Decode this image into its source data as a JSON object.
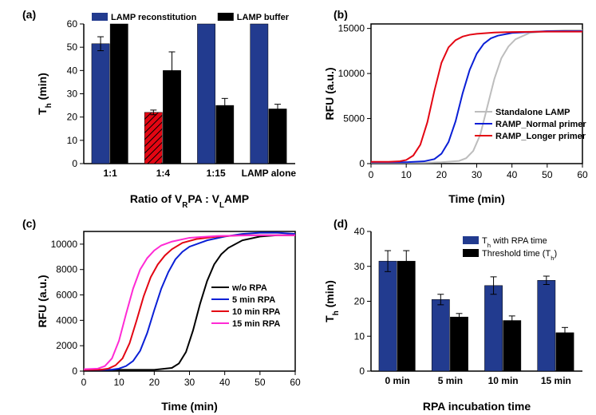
{
  "panel_a": {
    "label": "(a)",
    "type": "bar",
    "categories": [
      "1:1",
      "1:4",
      "1:15",
      "LAMP alone"
    ],
    "series": [
      {
        "name": "LAMP reconstitution",
        "color": "#223b8f",
        "values": [
          51.5,
          22,
          62,
          62
        ],
        "errors": [
          3,
          1,
          0,
          0
        ],
        "hatched": [
          false,
          true,
          false,
          false
        ]
      },
      {
        "name": "LAMP buffer",
        "color": "#000000",
        "values": [
          62,
          40,
          25,
          23.5
        ],
        "errors": [
          0,
          8,
          3,
          2
        ],
        "hatched": [
          false,
          false,
          false,
          false
        ]
      }
    ],
    "xlabel": "Ratio of V_RPA : V_LAMP",
    "ylabel": "T_h (min)",
    "ylim": [
      0,
      60
    ],
    "ytick_step": 10,
    "bar_width": 0.35,
    "axis_color": "#000000",
    "tick_fontsize": 12,
    "label_fontsize": 14,
    "legend_fontsize": 11
  },
  "panel_b": {
    "label": "(b)",
    "type": "line",
    "xlabel": "Time (min)",
    "ylabel": "RFU (a.u.)",
    "xlim": [
      0,
      60
    ],
    "xtick_step": 10,
    "ylim": [
      0,
      15500
    ],
    "ytick_step": 5000,
    "axis_color": "#000000",
    "line_width": 2.0,
    "tick_fontsize": 12,
    "label_fontsize": 14,
    "legend_fontsize": 11,
    "series": [
      {
        "name": "Standalone LAMP",
        "color": "#bdbdbd",
        "x": [
          0,
          5,
          10,
          15,
          20,
          25,
          27,
          29,
          31,
          33,
          35,
          37,
          39,
          41,
          45,
          50,
          55,
          60
        ],
        "y": [
          100,
          100,
          100,
          100,
          150,
          300,
          600,
          1400,
          3200,
          6300,
          9400,
          11700,
          13000,
          13800,
          14500,
          14700,
          14800,
          14800
        ]
      },
      {
        "name": "RAMP_Normal primer",
        "color": "#0a1fd6",
        "x": [
          0,
          5,
          10,
          15,
          18,
          20,
          22,
          24,
          26,
          28,
          30,
          32,
          34,
          36,
          40,
          45,
          50,
          55,
          60
        ],
        "y": [
          150,
          150,
          150,
          250,
          500,
          1100,
          2400,
          4700,
          7800,
          10400,
          12200,
          13300,
          13900,
          14200,
          14500,
          14600,
          14700,
          14700,
          14700
        ]
      },
      {
        "name": "RAMP_Longer primer",
        "color": "#e30613",
        "x": [
          0,
          5,
          8,
          10,
          12,
          14,
          16,
          18,
          20,
          22,
          24,
          26,
          28,
          30,
          35,
          40,
          50,
          60
        ],
        "y": [
          200,
          200,
          250,
          400,
          900,
          2100,
          4600,
          8100,
          11200,
          12900,
          13700,
          14100,
          14300,
          14400,
          14550,
          14600,
          14650,
          14650
        ]
      }
    ]
  },
  "panel_c": {
    "label": "(c)",
    "type": "line",
    "xlabel": "Time (min)",
    "ylabel": "RFU (a.u.)",
    "xlim": [
      0,
      60
    ],
    "xtick_step": 10,
    "ylim": [
      0,
      11000
    ],
    "ytick_step": 2000,
    "axis_color": "#000000",
    "line_width": 2.0,
    "tick_fontsize": 12,
    "label_fontsize": 14,
    "legend_fontsize": 11,
    "series": [
      {
        "name": "w/o RPA",
        "color": "#000000",
        "x": [
          0,
          5,
          10,
          15,
          20,
          25,
          27,
          29,
          31,
          33,
          35,
          37,
          39,
          41,
          45,
          50,
          55,
          60
        ],
        "y": [
          100,
          100,
          100,
          100,
          100,
          250,
          600,
          1500,
          3200,
          5300,
          7100,
          8400,
          9200,
          9700,
          10300,
          10600,
          10700,
          10700
        ]
      },
      {
        "name": "5 min RPA",
        "color": "#0a1fd6",
        "x": [
          0,
          5,
          8,
          10,
          12,
          14,
          16,
          18,
          20,
          22,
          24,
          26,
          28,
          30,
          35,
          40,
          45,
          50,
          55,
          60
        ],
        "y": [
          100,
          100,
          120,
          200,
          400,
          800,
          1600,
          3000,
          4800,
          6500,
          7800,
          8800,
          9400,
          9800,
          10300,
          10600,
          10800,
          10900,
          10900,
          10800
        ]
      },
      {
        "name": "10 min RPA",
        "color": "#e30613",
        "x": [
          0,
          5,
          7,
          9,
          11,
          13,
          15,
          17,
          19,
          21,
          23,
          25,
          28,
          32,
          38,
          45,
          55,
          60
        ],
        "y": [
          100,
          120,
          200,
          450,
          1000,
          2200,
          4000,
          5900,
          7400,
          8400,
          9100,
          9600,
          10100,
          10400,
          10600,
          10700,
          10700,
          10700
        ]
      },
      {
        "name": "15 min RPA",
        "color": "#ff2ad4",
        "x": [
          0,
          4,
          6,
          8,
          10,
          12,
          14,
          16,
          18,
          20,
          22,
          25,
          30,
          38,
          50,
          60
        ],
        "y": [
          150,
          200,
          400,
          1000,
          2400,
          4500,
          6500,
          8000,
          8900,
          9500,
          9900,
          10200,
          10500,
          10650,
          10700,
          10700
        ]
      }
    ]
  },
  "panel_d": {
    "label": "(d)",
    "type": "bar",
    "categories": [
      "0 min",
      "5 min",
      "10 min",
      "15 min"
    ],
    "series": [
      {
        "name": "T_h with RPA time",
        "color": "#223b8f",
        "values": [
          31.5,
          20.5,
          24.5,
          26
        ],
        "errors": [
          3,
          1.5,
          2.5,
          1.2
        ]
      },
      {
        "name": "Threshold time (T_h)",
        "color": "#000000",
        "values": [
          31.5,
          15.5,
          14.5,
          11
        ],
        "errors": [
          3,
          1,
          1.3,
          1.5
        ]
      }
    ],
    "xlabel": "RPA incubation time",
    "ylabel": "T_h (min)",
    "ylim": [
      0,
      40
    ],
    "ytick_step": 10,
    "bar_width": 0.35,
    "axis_color": "#000000",
    "tick_fontsize": 12,
    "label_fontsize": 14,
    "legend_fontsize": 11
  }
}
